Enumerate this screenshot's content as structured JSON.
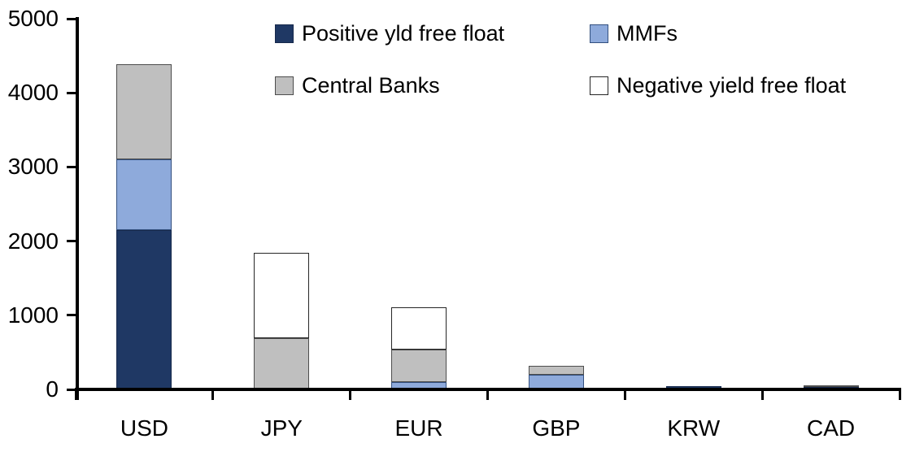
{
  "chart_data": {
    "type": "bar",
    "stacked": true,
    "title": "",
    "xlabel": "",
    "ylabel": "",
    "categories": [
      "USD",
      "JPY",
      "EUR",
      "GBP",
      "KRW",
      "CAD"
    ],
    "series": [
      {
        "name": "Positive yld free float",
        "color": "#1F3864",
        "border": "#17294C",
        "values": [
          2150,
          0,
          0,
          0,
          40,
          30
        ]
      },
      {
        "name": "MMFs",
        "color": "#8EAADB",
        "border": "#33507F",
        "values": [
          950,
          0,
          100,
          200,
          0,
          0
        ]
      },
      {
        "name": "Central Banks",
        "color": "#BFBFBF",
        "border": "#4D4D4D",
        "values": [
          1290,
          690,
          440,
          120,
          0,
          30
        ]
      },
      {
        "name": "Negative yield free float",
        "color": "#FFFFFF",
        "border": "#262626",
        "values": [
          0,
          1150,
          570,
          0,
          0,
          0
        ]
      }
    ],
    "totals": [
      4390,
      1840,
      1110,
      320,
      40,
      60
    ],
    "ylim": [
      0,
      5000
    ],
    "yticks": [
      0,
      1000,
      2000,
      3000,
      4000,
      5000
    ],
    "grid": false,
    "legend_position": "top",
    "legend_rows": [
      [
        0,
        1
      ],
      [
        2,
        3
      ]
    ],
    "axis_color": "#000000"
  }
}
